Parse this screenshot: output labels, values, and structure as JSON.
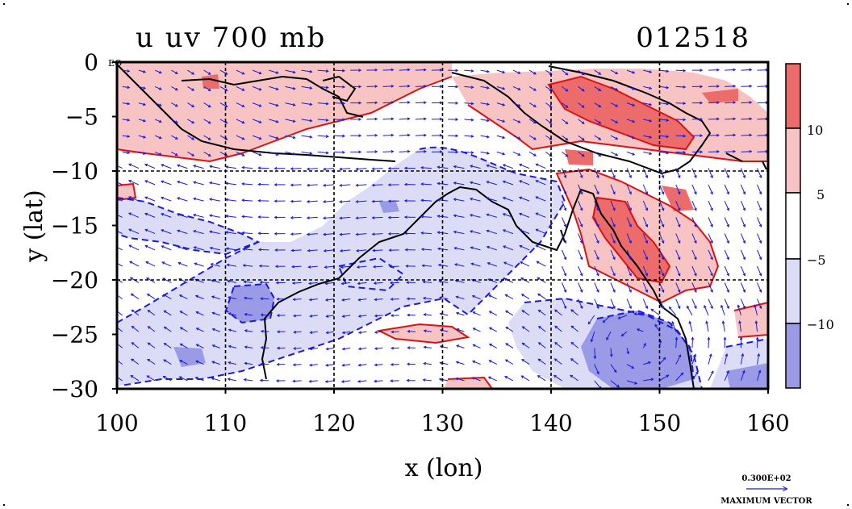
{
  "title": "u uv 700 mb",
  "date_label": "012518",
  "eq_label": "EQ",
  "x_axis": {
    "label": "x (lon)",
    "ticks": [
      "100",
      "110",
      "120",
      "130",
      "140",
      "150",
      "160"
    ],
    "values": [
      100,
      110,
      120,
      130,
      140,
      150,
      160
    ],
    "range": [
      100,
      160
    ]
  },
  "y_axis": {
    "label": "y (lat)",
    "ticks": [
      "0",
      "−5",
      "−10",
      "−15",
      "−20",
      "−25",
      "−30"
    ],
    "values": [
      0,
      -5,
      -10,
      -15,
      -20,
      -25,
      -30
    ],
    "range": [
      -30,
      0
    ]
  },
  "colorbar": {
    "labels": [
      "10",
      "5",
      "−5",
      "−10"
    ],
    "bins": [
      {
        "min": 10,
        "color": "#ec6b6b"
      },
      {
        "min": 5,
        "max": 10,
        "color": "#f7c3c3"
      },
      {
        "min": -5,
        "max": 5,
        "color": "#ffffff"
      },
      {
        "min": -10,
        "max": -5,
        "color": "#dcdcf7"
      },
      {
        "max": -10,
        "color": "#9a9ae6"
      }
    ]
  },
  "vector_legend": {
    "value": "0.300E+02",
    "caption": "MAXIMUM VECTOR"
  },
  "colors": {
    "positive_contour": "#dd1111",
    "negative_contour": "#1a1adc",
    "coast": "#000000",
    "vectors": "#1a1adc",
    "grid": "#000000"
  },
  "grid_lines": {
    "lon": [
      110,
      120,
      130,
      140,
      150
    ],
    "lat": [
      -10,
      -20
    ]
  }
}
